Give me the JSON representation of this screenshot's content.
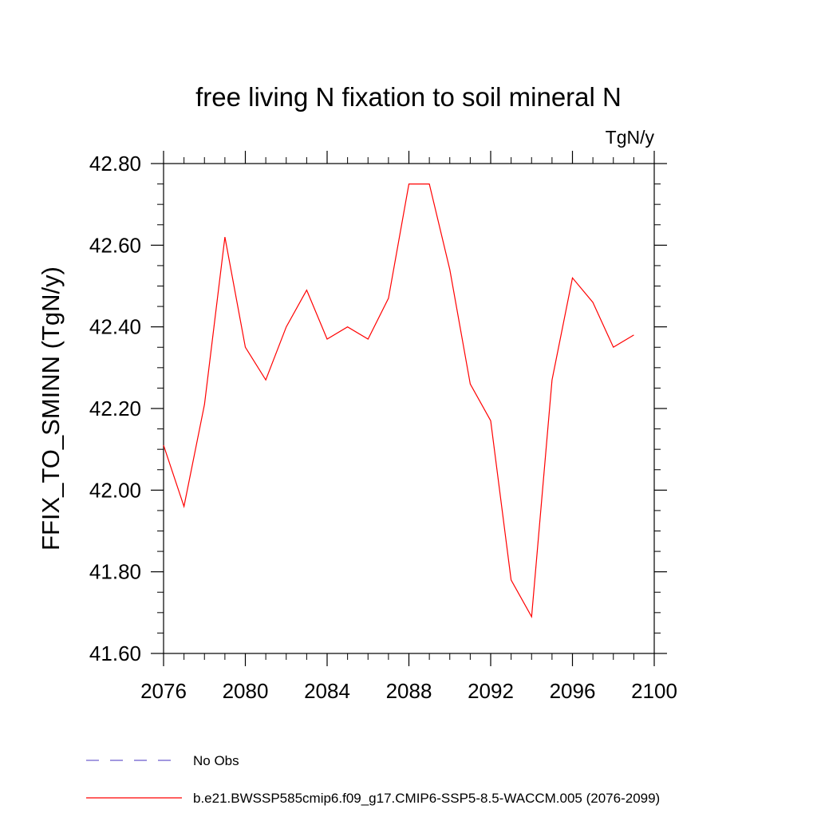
{
  "chart_data": {
    "type": "line",
    "title": "free living N fixation to soil mineral N",
    "units_label": "TgN/y",
    "ylabel": "FFIX_TO_SMINN  (TgN/y)",
    "xlabel": "",
    "xlim": [
      2076,
      2100
    ],
    "ylim": [
      41.6,
      42.8
    ],
    "x_ticks": [
      2076,
      2080,
      2084,
      2088,
      2092,
      2096,
      2100
    ],
    "x_tick_labels": [
      "2076",
      "2080",
      "2084",
      "2088",
      "2092",
      "2096",
      "2100"
    ],
    "y_ticks": [
      41.6,
      41.8,
      42.0,
      42.2,
      42.4,
      42.6,
      42.8
    ],
    "y_tick_labels": [
      "41.60",
      "41.80",
      "42.00",
      "42.20",
      "42.40",
      "42.60",
      "42.80"
    ],
    "grid": false,
    "legend_position": "bottom",
    "series": [
      {
        "name": "b.e21.BWSSP585cmip6.f09_g17.CMIP6-SSP5-8.5-WACCM.005 (2076-2099)",
        "color": "#ff0000",
        "x": [
          2076,
          2077,
          2078,
          2079,
          2080,
          2081,
          2082,
          2083,
          2084,
          2085,
          2086,
          2087,
          2088,
          2089,
          2090,
          2091,
          2092,
          2093,
          2094,
          2095,
          2096,
          2097,
          2098,
          2099
        ],
        "y": [
          42.11,
          41.96,
          42.21,
          42.62,
          42.35,
          42.27,
          42.4,
          42.49,
          42.37,
          42.4,
          42.37,
          42.47,
          42.75,
          42.75,
          42.54,
          42.26,
          42.17,
          41.78,
          41.69,
          42.27,
          42.52,
          42.46,
          42.35,
          42.38
        ]
      }
    ],
    "legend": [
      {
        "label": "No Obs",
        "color": "#6a5acd",
        "style": "dashed"
      },
      {
        "label": "b.e21.BWSSP585cmip6.f09_g17.CMIP6-SSP5-8.5-WACCM.005 (2076-2099)",
        "color": "#ff0000",
        "style": "solid"
      }
    ]
  }
}
